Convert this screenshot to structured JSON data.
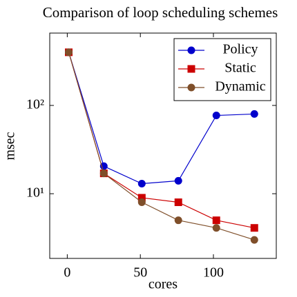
{
  "chart_data": {
    "type": "line",
    "title": "Comparison of loop scheduling schemes",
    "x_label": "cores",
    "y_label": "msec",
    "xlim": [
      -12,
      143
    ],
    "xticks": [
      0,
      50,
      100
    ],
    "ylim": [
      1.85,
      660
    ],
    "ylog": true,
    "yticks": [
      {
        "value": 10,
        "label": "10¹"
      },
      {
        "value": 100,
        "label": "10²"
      }
    ],
    "legend": "upper right",
    "x": [
      1,
      25,
      51,
      76,
      102,
      128
    ],
    "series": [
      {
        "name": "Policy",
        "color": "#0000cc",
        "marker": "circle",
        "values": [
          400,
          20.5,
          13,
          14,
          77,
          80
        ]
      },
      {
        "name": "Static",
        "color": "#cc0000",
        "marker": "square",
        "values": [
          400,
          17,
          9,
          8,
          5,
          4.1
        ]
      },
      {
        "name": "Dynamic",
        "color": "#7f4f2a",
        "marker": "circle",
        "values": [
          400,
          17,
          8,
          5,
          4.1,
          3
        ]
      }
    ]
  }
}
